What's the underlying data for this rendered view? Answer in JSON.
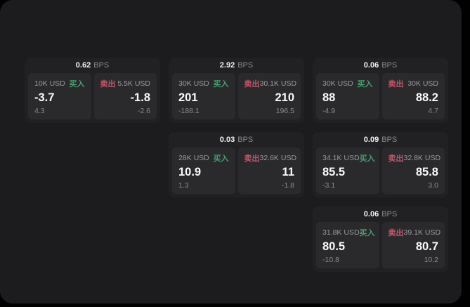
{
  "labels": {
    "buy": "买入",
    "sell": "卖出",
    "bps_unit": "BPS"
  },
  "colors": {
    "buy_accent": "#43a06c",
    "sell_accent": "#c75568"
  },
  "cards": [
    {
      "bps": "0.62",
      "buy": {
        "amount": "10K USD",
        "value": "-3.7",
        "sub": "4.3"
      },
      "sell": {
        "amount": "5.5K USD",
        "value": "-1.8",
        "sub": "-2.6"
      }
    },
    {
      "bps": "2.92",
      "buy": {
        "amount": "30K USD",
        "value": "201",
        "sub": "-188.1"
      },
      "sell": {
        "amount": "30.1K USD",
        "value": "210",
        "sub": "196.5"
      }
    },
    {
      "bps": "0.06",
      "buy": {
        "amount": "30K USD",
        "value": "88",
        "sub": "-4.9"
      },
      "sell": {
        "amount": "30K USD",
        "value": "88.2",
        "sub": "4.7"
      }
    },
    {
      "bps": "0.03",
      "buy": {
        "amount": "28K USD",
        "value": "10.9",
        "sub": "1.3"
      },
      "sell": {
        "amount": "32.6K USD",
        "value": "11",
        "sub": "-1.8"
      }
    },
    {
      "bps": "0.09",
      "buy": {
        "amount": "34.1K USD",
        "value": "85.5",
        "sub": "-3.1"
      },
      "sell": {
        "amount": "32.8K USD",
        "value": "85.8",
        "sub": "3.0"
      }
    },
    {
      "bps": "0.06",
      "buy": {
        "amount": "31.8K USD",
        "value": "80.5",
        "sub": "-10.8"
      },
      "sell": {
        "amount": "39.1K USD",
        "value": "80.7",
        "sub": "10.2"
      }
    }
  ]
}
